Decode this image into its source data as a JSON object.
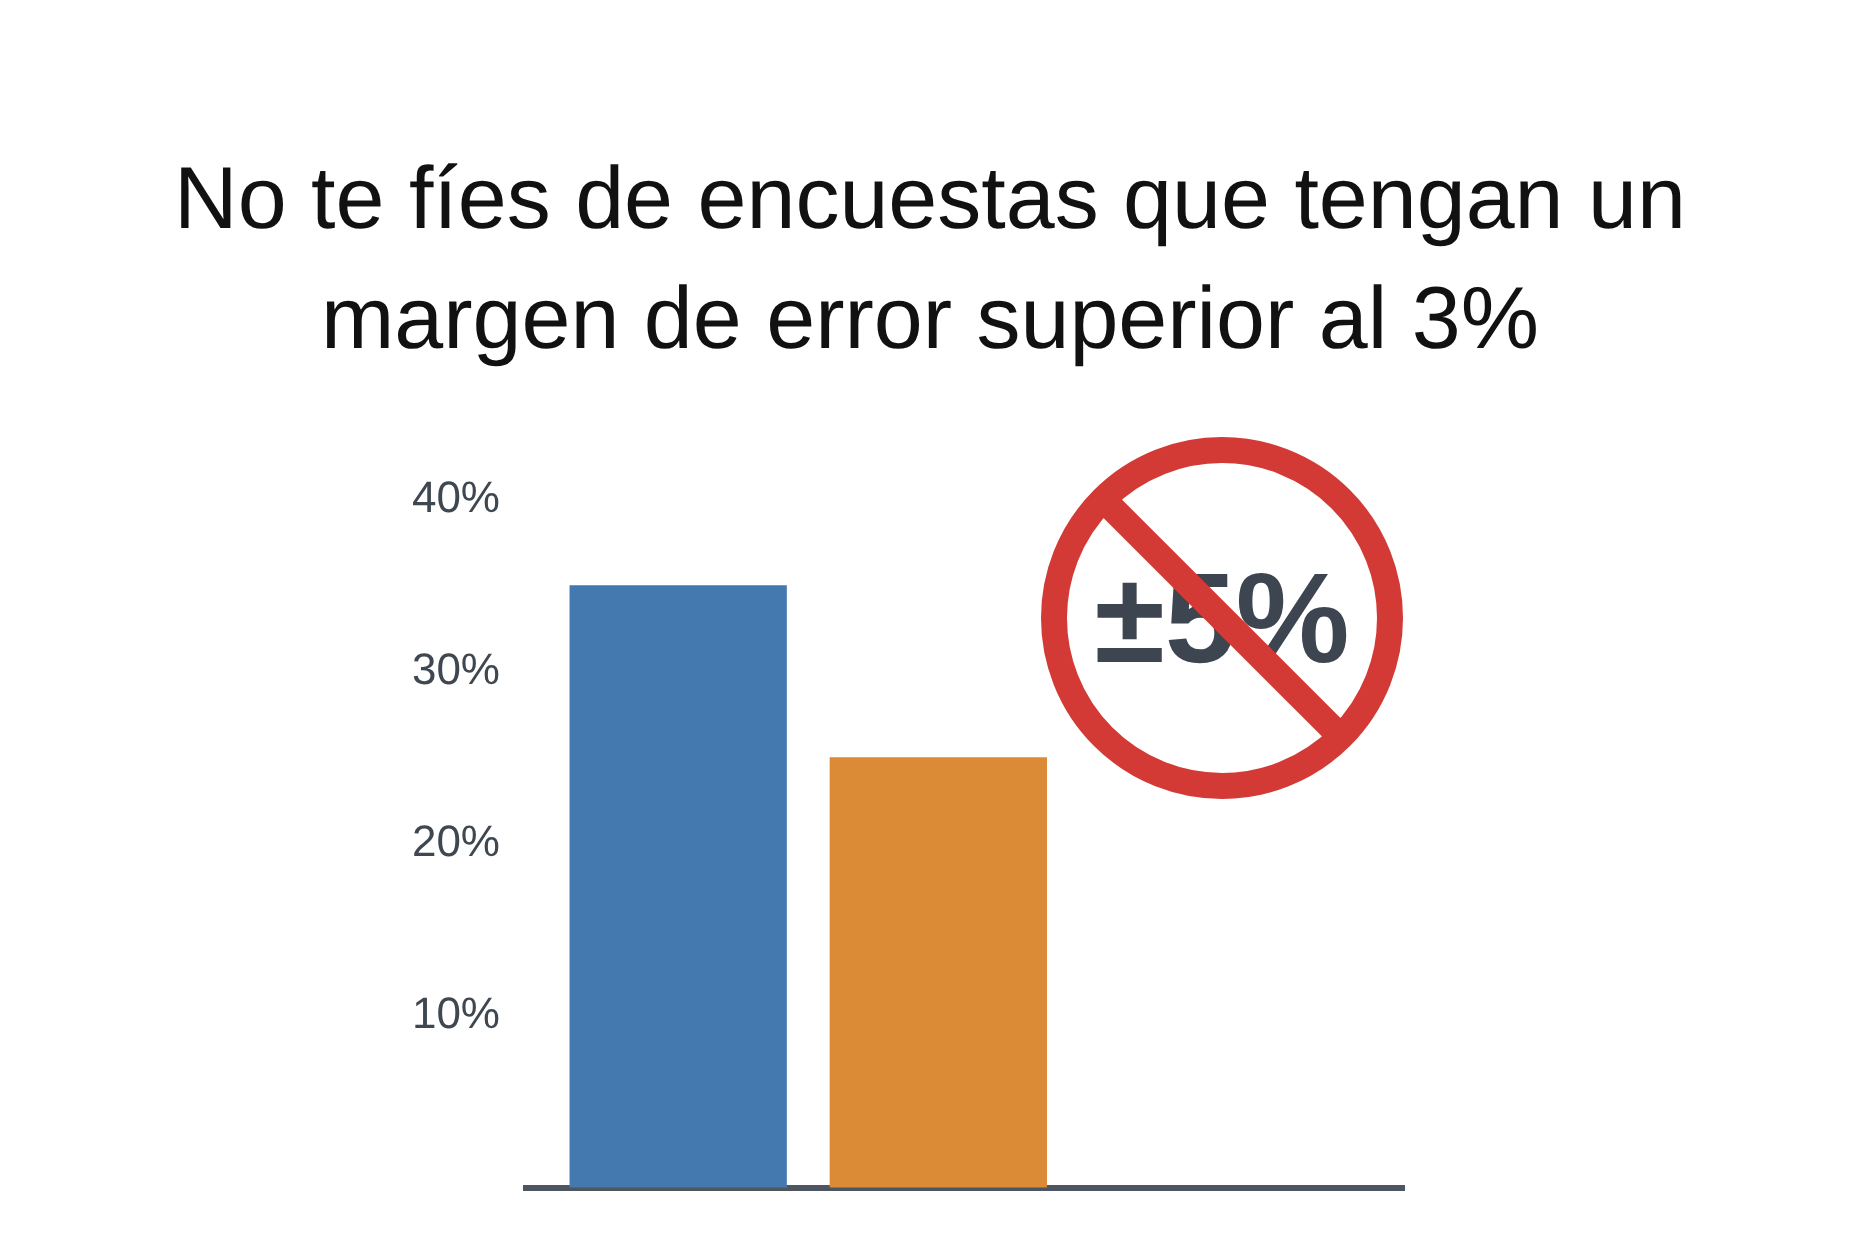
{
  "chart_data": {
    "type": "bar",
    "title": "No te fíes de encuestas que tengan un margen de error superior al 3%",
    "categories": [
      null,
      null
    ],
    "values": [
      35,
      25
    ],
    "colors": [
      "#4479b0",
      "#db8a35"
    ],
    "ylim": [
      0,
      40
    ],
    "yticks": [
      {
        "value": 10,
        "label": "10%"
      },
      {
        "value": 20,
        "label": "20%"
      },
      {
        "value": 30,
        "label": "30%"
      },
      {
        "value": 40,
        "label": "40%"
      }
    ],
    "tick_labels": "y",
    "annotations": [
      "±5%"
    ]
  }
}
